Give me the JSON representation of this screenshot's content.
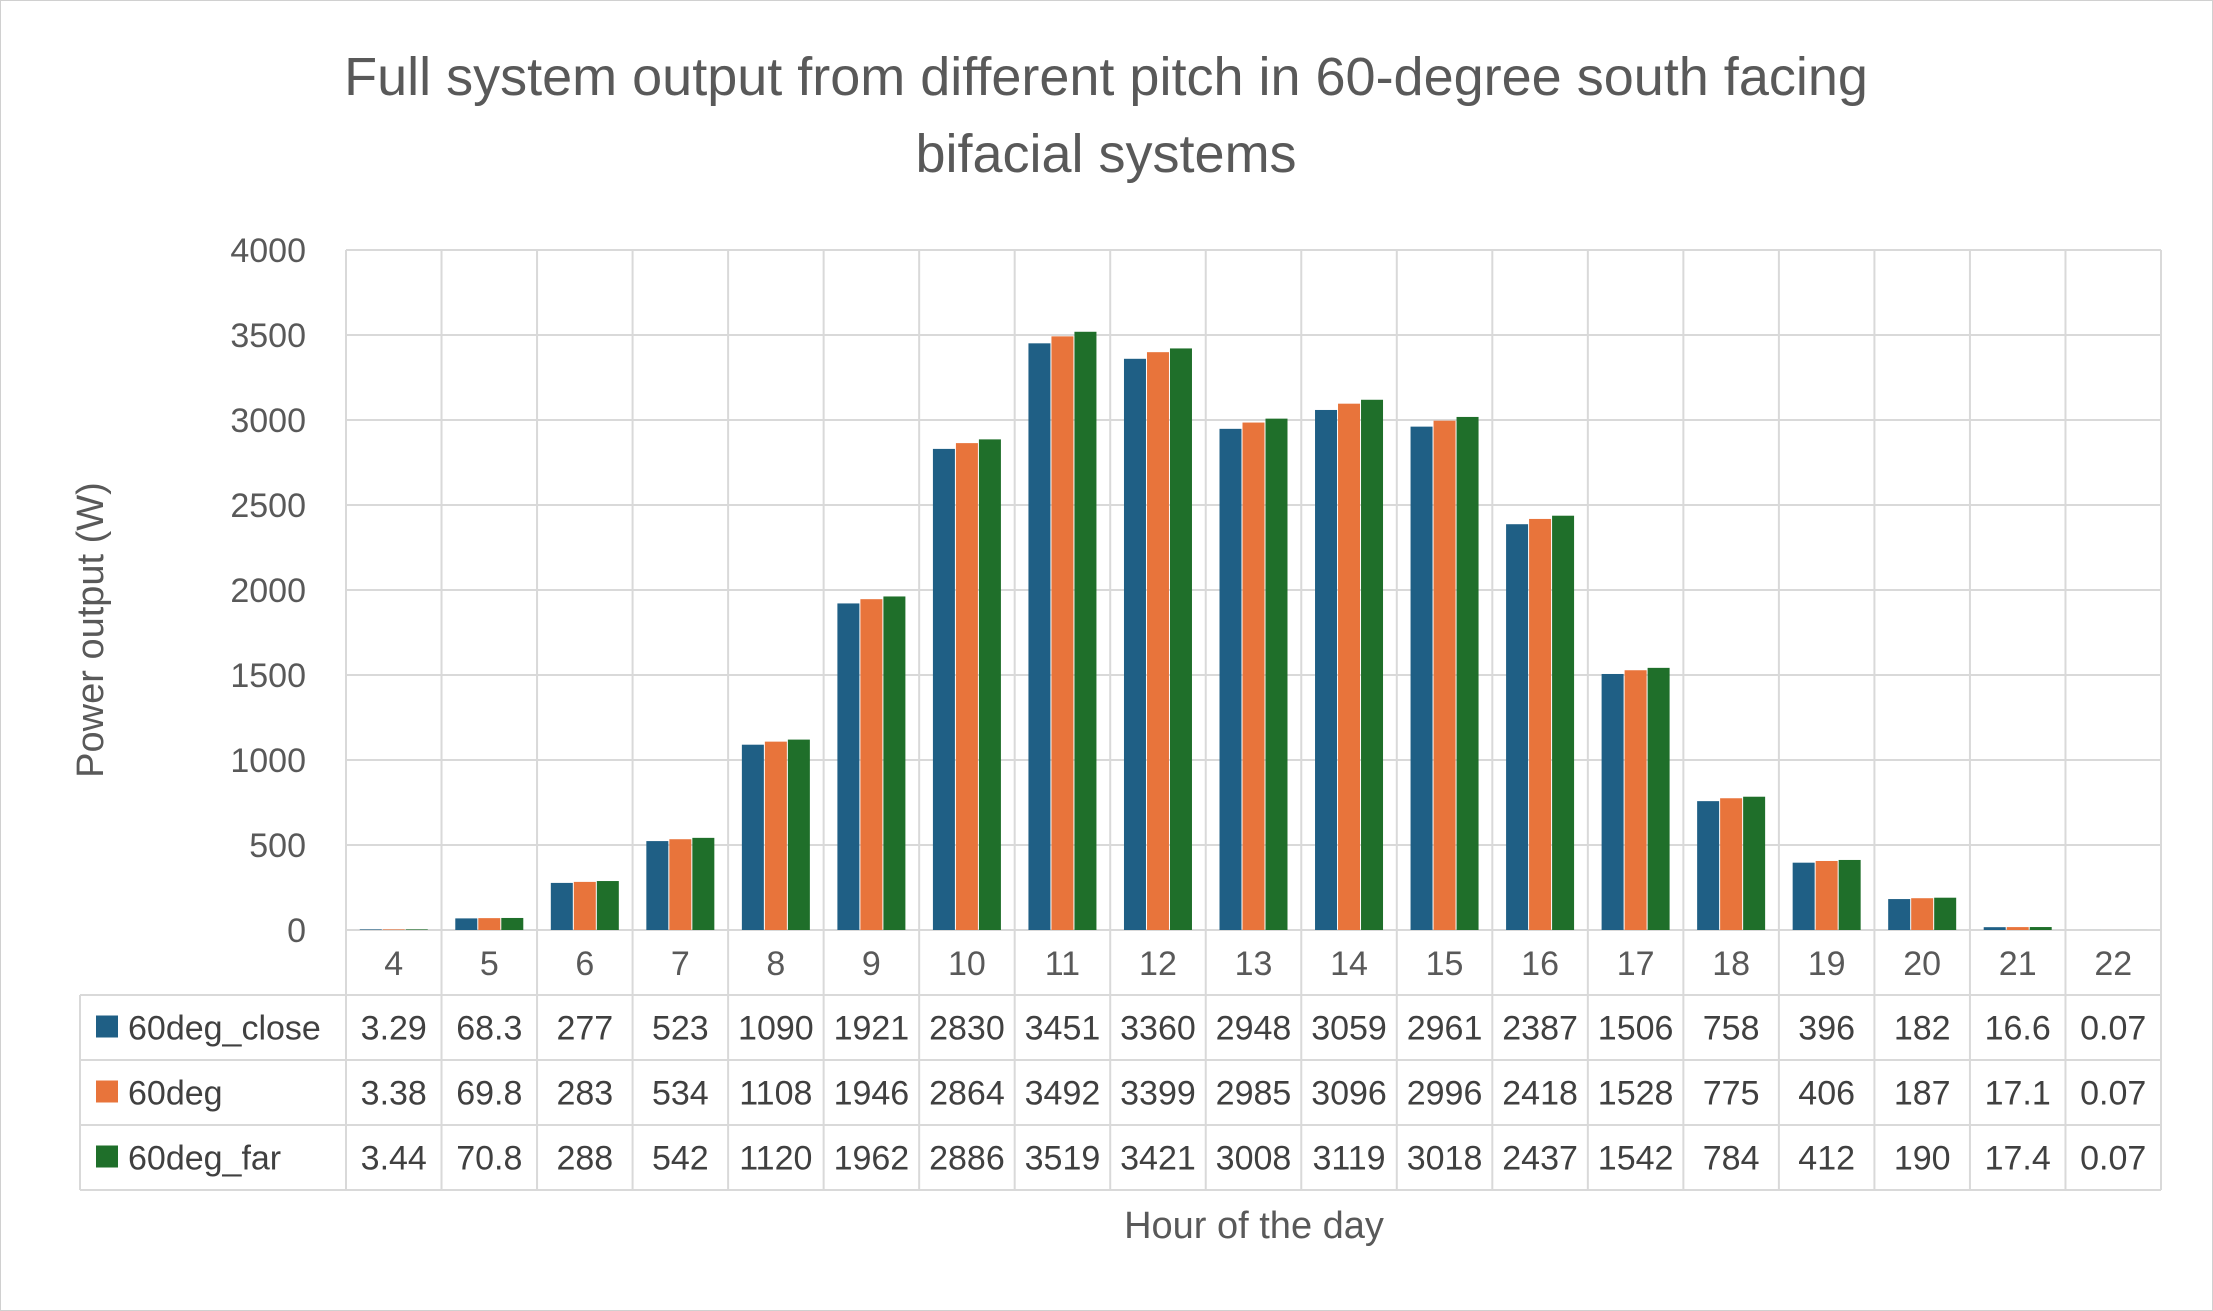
{
  "chart_data": {
    "type": "bar",
    "title_lines": [
      "Full system output from different pitch in 60-degree south facing",
      "bifacial systems"
    ],
    "xlabel": "Hour of the day",
    "ylabel": "Power output (W)",
    "ylim": [
      0,
      4000
    ],
    "yticks": [
      0,
      500,
      1000,
      1500,
      2000,
      2500,
      3000,
      3500,
      4000
    ],
    "grid": true,
    "legend": "data-table",
    "categories": [
      "4",
      "5",
      "6",
      "7",
      "8",
      "9",
      "10",
      "11",
      "12",
      "13",
      "14",
      "15",
      "16",
      "17",
      "18",
      "19",
      "20",
      "21",
      "22"
    ],
    "series": [
      {
        "name": "60deg_close",
        "color": "#1f5f85",
        "values": [
          3.29,
          68.3,
          277,
          523,
          1090,
          1921,
          2830,
          3451,
          3360,
          2948,
          3059,
          2961,
          2387,
          1506,
          758,
          396,
          182,
          16.6,
          0.07
        ]
      },
      {
        "name": "60deg",
        "color": "#e8743b",
        "values": [
          3.38,
          69.8,
          283,
          534,
          1108,
          1946,
          2864,
          3492,
          3399,
          2985,
          3096,
          2996,
          2418,
          1528,
          775,
          406,
          187,
          17.1,
          0.07
        ]
      },
      {
        "name": "60deg_far",
        "color": "#1f6f2a",
        "values": [
          3.44,
          70.8,
          288,
          542,
          1120,
          1962,
          2886,
          3519,
          3421,
          3008,
          3119,
          3018,
          2437,
          1542,
          784,
          412,
          190,
          17.4,
          0.07
        ]
      }
    ]
  }
}
